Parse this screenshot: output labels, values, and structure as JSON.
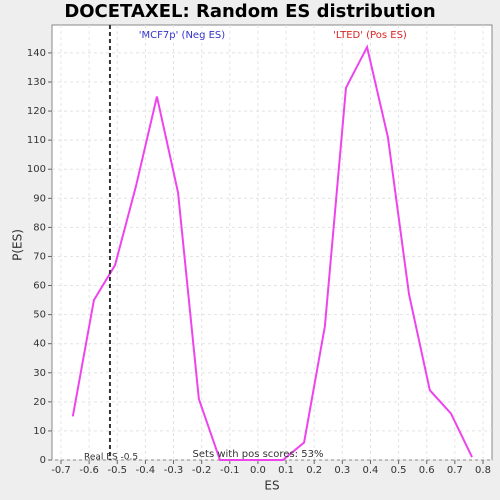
{
  "chart_data": {
    "type": "line",
    "title": "DOCETAXEL: Random ES distribution",
    "x_label": "ES",
    "y_label": "P(ES)",
    "x": [
      -0.658,
      -0.583,
      -0.508,
      -0.434,
      -0.359,
      -0.284,
      -0.21,
      -0.135,
      -0.06,
      0.014,
      0.089,
      0.164,
      0.238,
      0.313,
      0.388,
      0.462,
      0.537,
      0.611,
      0.686,
      0.761
    ],
    "series": [
      {
        "color": "#ee44ee",
        "values": [
          15,
          55,
          67,
          94,
          125,
          92,
          21,
          0,
          0,
          0,
          0,
          6,
          46,
          128,
          142,
          111,
          57,
          24,
          16,
          1
        ]
      }
    ],
    "xlim": [
      -0.732,
      0.832
    ],
    "ylim": [
      0,
      149.6
    ],
    "xticks": [
      -0.7,
      -0.6,
      -0.5,
      -0.4,
      -0.3,
      -0.2,
      -0.1,
      {
        "value": 0,
        "label": "0.0"
      },
      0.1,
      0.2,
      0.3,
      0.4,
      0.5,
      0.6,
      0.7,
      0.8
    ],
    "yticks": [
      0,
      10,
      20,
      30,
      40,
      50,
      60,
      70,
      80,
      90,
      100,
      110,
      120,
      130,
      140
    ],
    "grid": true,
    "real_es": -0.526,
    "real_es_label": "Real ES -0.5",
    "neg_label": "'MCF7p' (Neg ES)",
    "neg_color": "#3333cc",
    "pos_label": "'LTED' (Pos ES)",
    "pos_color": "#dd2222",
    "footer_label": "Sets with pos scores: 53%"
  }
}
